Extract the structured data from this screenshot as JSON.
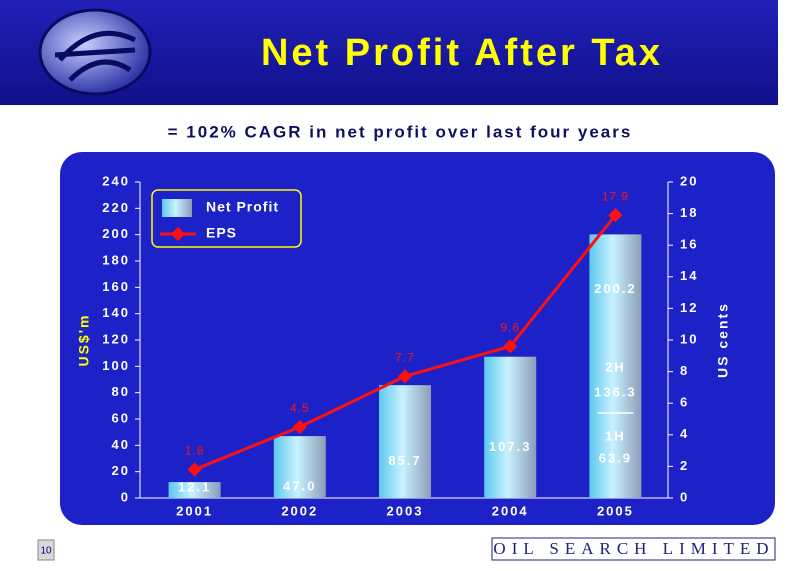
{
  "chart_data": {
    "type": "bar",
    "title": "Net Profit After Tax",
    "subtitle": "= 102%  CAGR in net profit over last four years",
    "categories": [
      "2001",
      "2002",
      "2003",
      "2004",
      "2005"
    ],
    "series": [
      {
        "name": "Net Profit",
        "type": "bar",
        "color": "#9fe3f5",
        "values": [
          12.1,
          47.0,
          85.7,
          107.3,
          200.2
        ],
        "value_labels": [
          "12.1",
          "47.0",
          "85.7",
          "107.3",
          "200.2"
        ]
      },
      {
        "name": "EPS",
        "type": "line",
        "axis": "y2",
        "color": "#ff1010",
        "values": [
          1.8,
          4.5,
          7.7,
          9.6,
          17.9
        ]
      }
    ],
    "breakdown": {
      "category": 4,
      "labels": [
        "2H",
        "1H"
      ],
      "values": [
        136.3,
        63.9
      ]
    },
    "ylabel": "US$'m",
    "y2label": "US cents",
    "ylim": [
      0,
      240
    ],
    "yticks": [
      0,
      20,
      40,
      60,
      80,
      100,
      120,
      140,
      160,
      180,
      200,
      220,
      240
    ],
    "y2lim": [
      0,
      20
    ],
    "y2ticks": [
      0,
      2,
      4,
      6,
      8,
      10,
      12,
      14,
      16,
      18,
      20
    ],
    "grid": false,
    "legend": "upper left"
  },
  "footer": {
    "page": "10",
    "company": "OIL SEARCH LIMITED"
  }
}
